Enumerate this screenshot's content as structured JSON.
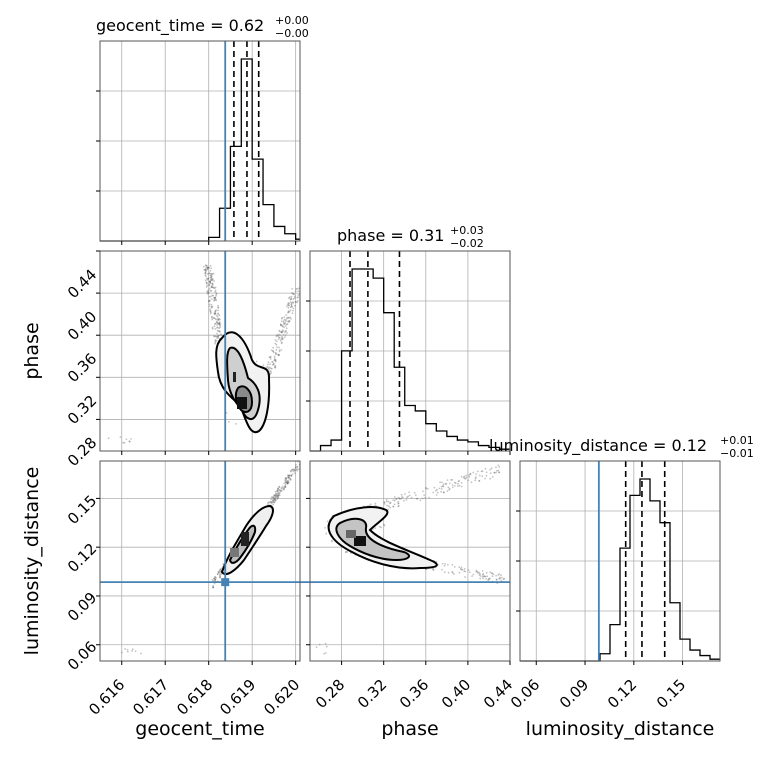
{
  "chart_data": {
    "type": "corner",
    "parameters": [
      "geocent_time",
      "phase",
      "luminosity_distance"
    ],
    "titles": [
      {
        "text": "geocent_time = 0.62",
        "sup": "+0.00",
        "sub": "−0.00"
      },
      {
        "text": "phase = 0.31",
        "sup": "+0.03",
        "sub": "−0.02"
      },
      {
        "text": "luminosity_distance = 0.12",
        "sup": "+0.01",
        "sub": "−0.01"
      }
    ],
    "truths": [
      0.61838,
      null,
      0.0985
    ],
    "ranges": [
      [
        0.6155,
        0.6201
      ],
      [
        0.25,
        0.44
      ],
      [
        0.05,
        0.173
      ]
    ],
    "ticks": {
      "geocent_time": [
        0.616,
        0.617,
        0.618,
        0.619,
        0.62
      ],
      "geocent_time_labels": [
        "0.616",
        "0.617",
        "0.618",
        "0.619",
        "0.620"
      ],
      "phase": [
        0.28,
        0.32,
        0.36,
        0.4,
        0.44
      ],
      "phase_labels": [
        "0.28",
        "0.32",
        "0.36",
        "0.40",
        "0.44"
      ],
      "luminosity_distance": [
        0.06,
        0.09,
        0.12,
        0.15
      ],
      "luminosity_distance_labels": [
        "0.06",
        "0.09",
        "0.12",
        "0.15"
      ]
    },
    "quantiles": {
      "geocent_time": [
        0.61858,
        0.61888,
        0.61915
      ],
      "phase": [
        0.288,
        0.305,
        0.335
      ],
      "luminosity_distance": [
        0.115,
        0.125,
        0.139
      ]
    },
    "histograms": {
      "geocent_time": {
        "edges": [
          0.6155,
          0.61575,
          0.616,
          0.61625,
          0.6165,
          0.61675,
          0.617,
          0.61725,
          0.6175,
          0.61775,
          0.618,
          0.61825,
          0.6185,
          0.61875,
          0.619,
          0.61925,
          0.6195,
          0.61975,
          0.62,
          0.6201
        ],
        "counts": [
          0.0,
          0.0,
          0.0,
          0.0,
          0.0,
          0.0,
          0.0,
          0.0,
          0.0,
          0.0,
          0.02,
          0.18,
          0.52,
          1.0,
          0.45,
          0.2,
          0.08,
          0.04,
          0.01
        ]
      },
      "phase": {
        "edges": [
          0.25,
          0.26,
          0.27,
          0.28,
          0.29,
          0.3,
          0.31,
          0.32,
          0.33,
          0.34,
          0.35,
          0.36,
          0.37,
          0.38,
          0.39,
          0.4,
          0.41,
          0.42,
          0.43,
          0.44
        ],
        "counts": [
          0.0,
          0.03,
          0.06,
          0.55,
          1.0,
          1.0,
          0.95,
          0.76,
          0.46,
          0.25,
          0.22,
          0.15,
          0.11,
          0.08,
          0.06,
          0.05,
          0.03,
          0.02,
          0.01
        ]
      },
      "luminosity_distance": {
        "edges": [
          0.05,
          0.05615,
          0.0623,
          0.06845,
          0.0746,
          0.08075,
          0.0869,
          0.09305,
          0.0992,
          0.10535,
          0.1115,
          0.11765,
          0.1238,
          0.12995,
          0.1361,
          0.14225,
          0.1484,
          0.15455,
          0.1607,
          0.16685,
          0.173
        ],
        "counts": [
          0.0,
          0.0,
          0.0,
          0.0,
          0.0,
          0.0,
          0.0,
          0.0,
          0.04,
          0.2,
          0.62,
          0.91,
          1.0,
          0.88,
          0.76,
          0.32,
          0.12,
          0.06,
          0.03,
          0.01
        ]
      }
    },
    "axis_labels": {
      "x": [
        "geocent_time",
        "phase",
        "luminosity_distance"
      ],
      "y": [
        "phase",
        "luminosity_distance"
      ]
    },
    "grid": true
  }
}
